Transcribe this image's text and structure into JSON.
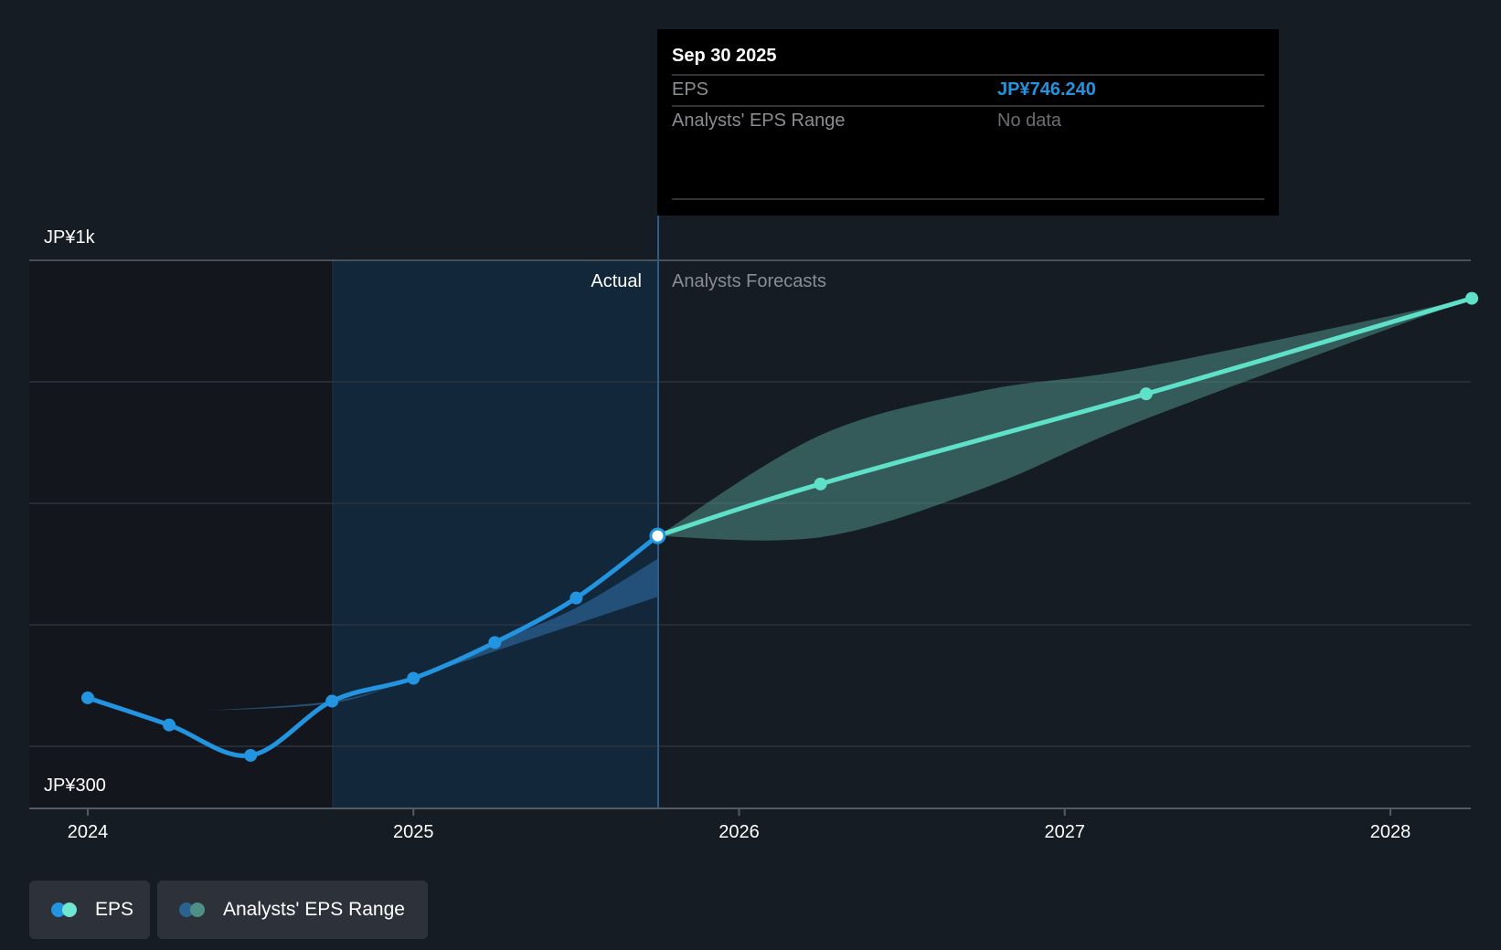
{
  "tooltip": {
    "date": "Sep 30 2025",
    "rows": [
      {
        "label": "EPS",
        "value": "JP¥746.240"
      },
      {
        "label": "Analysts' EPS Range",
        "value": "No data"
      }
    ]
  },
  "labels": {
    "actual": "Actual",
    "forecast": "Analysts Forecasts"
  },
  "legend": [
    {
      "label": "EPS"
    },
    {
      "label": "Analysts' EPS Range"
    }
  ],
  "colors": {
    "actual": "#2394df",
    "forecast": "#5fe0c8",
    "range_past": "#2a5f8f",
    "range_future": "#4f8f86",
    "value": "#2394df",
    "nodata": "#6b6e72"
  },
  "chart_data": {
    "type": "line",
    "y_tick_labels": [
      "JP¥1k",
      "JP¥300"
    ],
    "x_tick_labels": [
      "2024",
      "2025",
      "2026",
      "2027",
      "2028"
    ],
    "x_ticks": [
      2024,
      2025,
      2026,
      2027,
      2028
    ],
    "actual": {
      "name": "EPS",
      "x": [
        2024.0,
        2024.25,
        2024.5,
        2024.75,
        2025.0,
        2025.25,
        2025.5,
        2025.75
      ],
      "y": [
        597,
        572,
        544,
        594,
        615,
        648,
        689,
        746.24
      ]
    },
    "forecast": {
      "name": "EPS forecast",
      "x": [
        2025.75,
        2026.25,
        2027.25,
        2028.25
      ],
      "y": [
        746.24,
        794,
        877,
        965
      ]
    },
    "range_past": {
      "x": [
        2024.35,
        2024.75,
        2025.0,
        2025.25,
        2025.5,
        2025.75
      ],
      "low": [
        585,
        592,
        615,
        640,
        665,
        690
      ],
      "high": [
        585,
        594,
        615,
        648,
        680,
        725
      ]
    },
    "range_future": {
      "x": [
        2025.75,
        2026.25,
        2026.75,
        2027.25,
        2028.25
      ],
      "low": [
        746,
        745,
        790,
        854,
        965
      ],
      "high": [
        746,
        839,
        880,
        902,
        965
      ]
    },
    "divider_x": 2025.75
  }
}
